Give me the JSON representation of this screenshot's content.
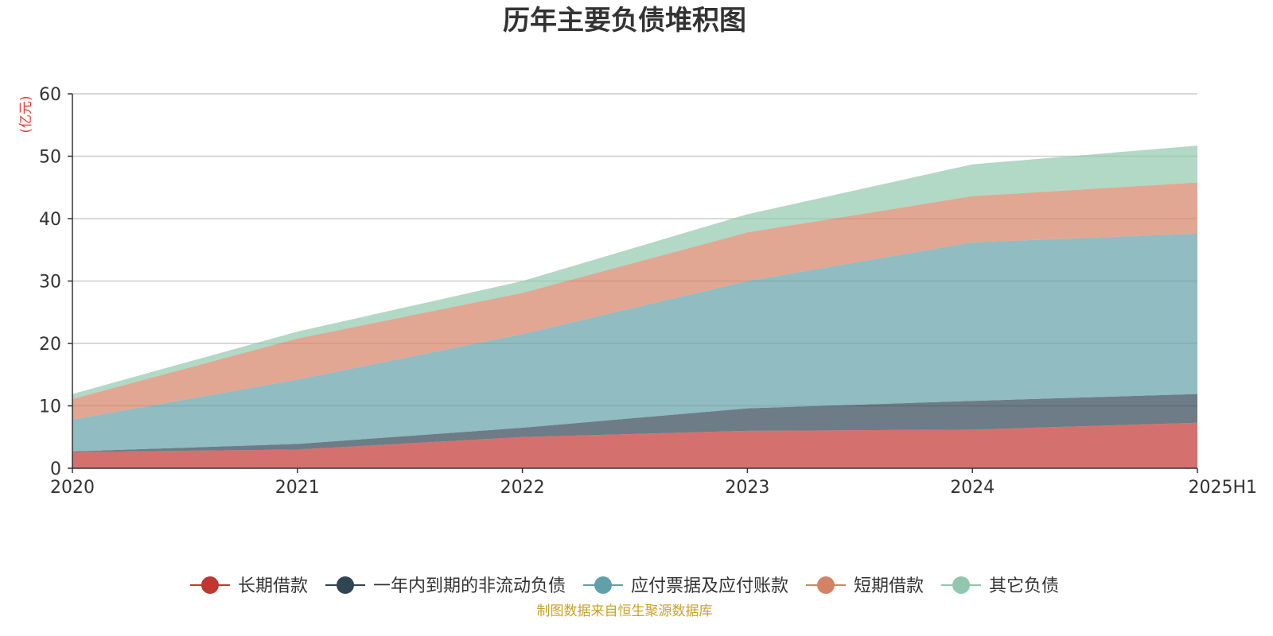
{
  "chart_data": {
    "type": "area",
    "stacked": true,
    "title": "历年主要负债堆积图",
    "ylabel": "(亿元)",
    "categories": [
      "2020",
      "2021",
      "2022",
      "2023",
      "2024",
      "2025H1"
    ],
    "ylim": [
      0,
      60
    ],
    "yticks": [
      0,
      10,
      20,
      30,
      40,
      50,
      60
    ],
    "grid": true,
    "legend_position": "bottom",
    "series": [
      {
        "name": "长期借款",
        "color": "#c23531",
        "values": [
          2.6,
          3.0,
          5.0,
          6.0,
          6.2,
          7.3
        ]
      },
      {
        "name": "一年内到期的非流动负债",
        "color": "#2f4554",
        "values": [
          0.1,
          0.9,
          1.5,
          3.6,
          4.6,
          4.6
        ]
      },
      {
        "name": "应付票据及应付账款",
        "color": "#61a0a8",
        "values": [
          5.1,
          10.3,
          15.0,
          20.4,
          25.4,
          25.7
        ]
      },
      {
        "name": "短期借款",
        "color": "#d48265",
        "values": [
          3.3,
          6.6,
          6.6,
          7.8,
          7.4,
          8.2
        ]
      },
      {
        "name": "其它负债",
        "color": "#91c7ae",
        "values": [
          0.8,
          1.1,
          1.9,
          2.9,
          5.1,
          5.9
        ]
      }
    ],
    "source": "制图数据来自恒生聚源数据库"
  }
}
